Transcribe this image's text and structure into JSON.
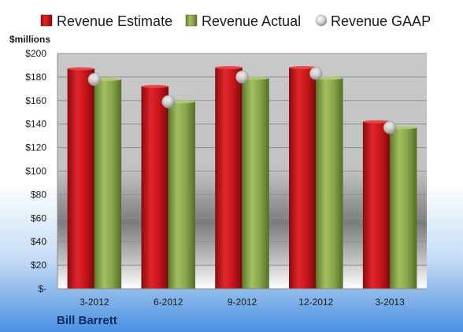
{
  "chart_data": {
    "type": "bar",
    "categories": [
      "3-2012",
      "6-2012",
      "9-2012",
      "12-2012",
      "3-2013"
    ],
    "series": [
      {
        "name": "Revenue Estimate",
        "values": [
          187,
          172,
          188,
          188,
          142
        ],
        "color": "#c8161b",
        "kind": "bar"
      },
      {
        "name": "Revenue Actual",
        "values": [
          178,
          159,
          179,
          179,
          137
        ],
        "color": "#8aa64a",
        "kind": "bar"
      },
      {
        "name": "Revenue GAAP",
        "values": [
          178,
          159,
          180,
          183,
          137
        ],
        "color": "#c8c8c8",
        "kind": "marker"
      }
    ],
    "ylabel": "$millions",
    "ylim": [
      0,
      200
    ],
    "yticks": [
      0,
      20,
      40,
      60,
      80,
      100,
      120,
      140,
      160,
      180,
      200
    ],
    "ytick_labels": [
      "$-",
      "$20",
      "$40",
      "$60",
      "$80",
      "$100",
      "$120",
      "$140",
      "$160",
      "$180",
      "$200"
    ],
    "grid": true,
    "legend_position": "top"
  },
  "company": "Bill Barrett",
  "colors": {
    "background_top": "#ffffff",
    "background_bottom": "#4a90e0",
    "plot_top": "#c9c9c9",
    "plot_mid": "#7c7c7c"
  }
}
